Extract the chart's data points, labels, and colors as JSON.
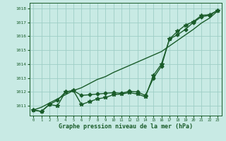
{
  "xlabel": "Graphe pression niveau de la mer (hPa)",
  "xlim": [
    -0.5,
    23.5
  ],
  "ylim": [
    1010.3,
    1018.4
  ],
  "yticks": [
    1011,
    1012,
    1013,
    1014,
    1015,
    1016,
    1017,
    1018
  ],
  "xticks": [
    0,
    1,
    2,
    3,
    4,
    5,
    6,
    7,
    8,
    9,
    10,
    11,
    12,
    13,
    14,
    15,
    16,
    17,
    18,
    19,
    20,
    21,
    22,
    23
  ],
  "background_color": "#c8eae4",
  "grid_color": "#9ecec5",
  "line_color": "#1a5c2a",
  "series": [
    {
      "x": [
        0,
        1,
        2,
        3,
        4,
        5,
        6,
        7,
        8,
        9,
        10,
        11,
        12,
        13,
        14,
        15,
        16,
        17,
        18,
        19,
        20,
        21,
        22,
        23
      ],
      "y": [
        1010.7,
        1010.6,
        1011.1,
        1011.4,
        1012.0,
        1012.1,
        1011.75,
        1011.8,
        1011.85,
        1011.9,
        1011.95,
        1011.9,
        1012.05,
        1012.0,
        1011.75,
        1013.0,
        1013.85,
        1015.8,
        1016.1,
        1016.5,
        1017.0,
        1017.4,
        1017.5,
        1017.85
      ],
      "marker": "D",
      "markersize": 2.5,
      "linewidth": 1.0,
      "linestyle": "-"
    },
    {
      "x": [
        0,
        1,
        2,
        3,
        4,
        5,
        6,
        7,
        8,
        9,
        10,
        11,
        12,
        13,
        14,
        15,
        16,
        17,
        18,
        19,
        20,
        21,
        22,
        23
      ],
      "y": [
        1010.7,
        1010.9,
        1011.2,
        1011.5,
        1011.8,
        1012.1,
        1012.3,
        1012.6,
        1012.9,
        1013.1,
        1013.4,
        1013.65,
        1013.9,
        1014.15,
        1014.4,
        1014.65,
        1014.9,
        1015.3,
        1015.7,
        1016.1,
        1016.5,
        1016.95,
        1017.3,
        1017.8
      ],
      "marker": "None",
      "markersize": 0,
      "linewidth": 1.0,
      "linestyle": "-"
    },
    {
      "x": [
        0,
        1,
        2,
        3,
        4,
        5,
        6,
        7,
        8,
        9,
        10,
        11,
        12,
        13,
        14,
        15,
        16,
        17,
        18,
        19,
        20,
        21,
        22,
        23
      ],
      "y": [
        1010.7,
        1010.6,
        1011.1,
        1011.0,
        1012.0,
        1012.1,
        1011.1,
        1011.3,
        1011.5,
        1011.6,
        1011.8,
        1011.85,
        1011.95,
        1011.85,
        1011.65,
        1013.2,
        1014.0,
        1015.8,
        1016.35,
        1016.8,
        1017.05,
        1017.5,
        1017.55,
        1017.85
      ],
      "marker": "*",
      "markersize": 4,
      "linewidth": 1.0,
      "linestyle": "-"
    }
  ]
}
